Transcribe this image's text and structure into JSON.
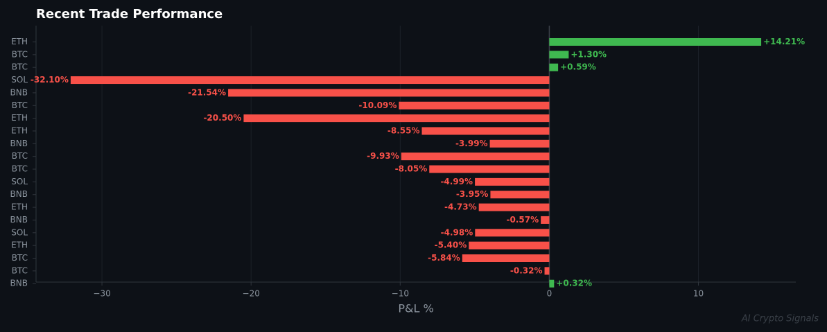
{
  "chart_data": {
    "type": "barh",
    "title": "Recent Trade Performance",
    "x_label": "P&L %",
    "watermark": "AI Crypto Signals",
    "categories": [
      "ETH",
      "BTC",
      "BTC",
      "SOL",
      "BNB",
      "BTC",
      "ETH",
      "ETH",
      "BNB",
      "BTC",
      "BTC",
      "SOL",
      "BNB",
      "ETH",
      "BNB",
      "SOL",
      "ETH",
      "BTC",
      "BTC",
      "BNB"
    ],
    "values": [
      14.21,
      1.3,
      0.59,
      -32.1,
      -21.54,
      -10.09,
      -20.5,
      -8.55,
      -3.99,
      -9.93,
      -8.05,
      -4.99,
      -3.95,
      -4.73,
      -0.57,
      -4.98,
      -5.4,
      -5.84,
      -0.32,
      0.32
    ],
    "value_labels": [
      "+14.21%",
      "+1.30%",
      "+0.59%",
      "-32.10%",
      "-21.54%",
      "-10.09%",
      "-20.50%",
      "-8.55%",
      "-3.99%",
      "-9.93%",
      "-8.05%",
      "-4.99%",
      "-3.95%",
      "-4.73%",
      "-0.57%",
      "-4.98%",
      "-5.40%",
      "-5.84%",
      "-0.32%",
      "+0.32%"
    ],
    "positive_color": "#3fb950",
    "negative_color": "#f85149",
    "xlim": [
      -34.42,
      16.53
    ],
    "xticks": [
      {
        "value": -30,
        "label": "−30"
      },
      {
        "value": -20,
        "label": "−20"
      },
      {
        "value": -10,
        "label": "−10"
      },
      0,
      10
    ],
    "grid": true
  }
}
